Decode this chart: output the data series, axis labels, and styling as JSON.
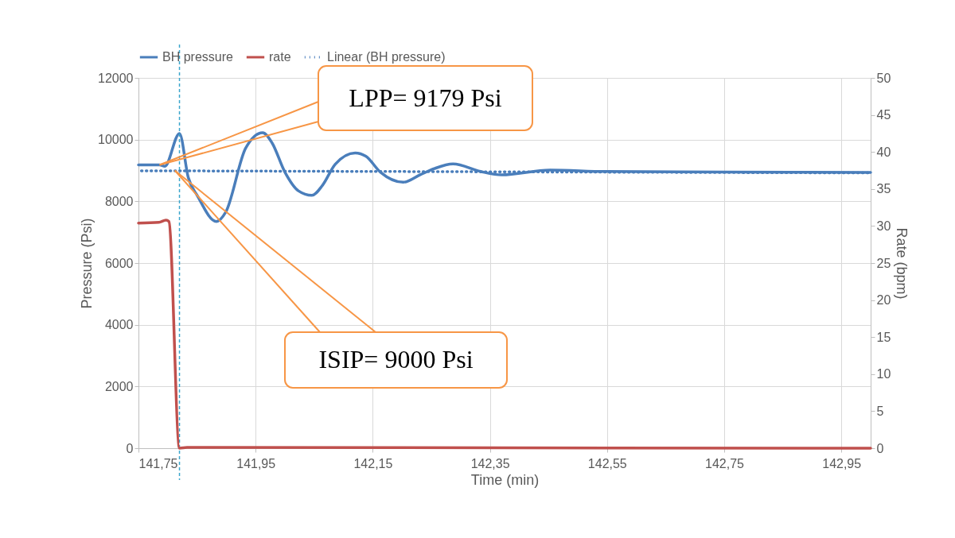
{
  "chart_data": {
    "type": "line",
    "xlabel": "Time (min)",
    "ylabel": "Pressure (Psi)",
    "y2label": "Rate (bpm)",
    "xlim": [
      141.75,
      143.0
    ],
    "xticks": [
      {
        "value": 141.75,
        "label": "141,75"
      },
      {
        "value": 141.95,
        "label": "141,95"
      },
      {
        "value": 142.15,
        "label": "142,15"
      },
      {
        "value": 142.35,
        "label": "142,35"
      },
      {
        "value": 142.55,
        "label": "142,55"
      },
      {
        "value": 142.75,
        "label": "142,75"
      },
      {
        "value": 142.95,
        "label": "142,95"
      }
    ],
    "ylim": [
      0,
      12000
    ],
    "yticks": [
      0,
      2000,
      4000,
      6000,
      8000,
      10000,
      12000
    ],
    "y2lim": [
      0,
      50
    ],
    "y2ticks": [
      0,
      5,
      10,
      15,
      20,
      25,
      30,
      35,
      40,
      45,
      50
    ],
    "grid": true,
    "legend": "top",
    "marker": "none",
    "series": [
      {
        "name": "BH pressure",
        "color": "#4a7ebb",
        "line_style": "solid",
        "x": [
          141.75,
          141.786,
          141.795,
          141.82,
          141.835,
          141.851,
          141.883,
          141.899,
          141.933,
          141.962,
          141.978,
          142.0,
          142.023,
          142.046,
          142.064,
          142.086,
          142.12,
          142.138,
          142.163,
          142.202,
          142.231,
          142.255,
          142.287,
          142.334,
          142.37,
          142.453,
          142.547,
          142.75,
          143.0
        ],
        "values": [
          9179,
          9179,
          9136,
          10199,
          8773,
          8168,
          7347,
          7650,
          9724,
          10225,
          9896,
          8946,
          8341,
          8194,
          8514,
          9205,
          9568,
          9464,
          8946,
          8618,
          8860,
          9060,
          9212,
          8966,
          8857,
          9015,
          8966,
          8950,
          8936
        ]
      },
      {
        "name": "rate",
        "color": "#c0504d",
        "line_style": "solid",
        "axis": "y2",
        "x": [
          141.75,
          141.785,
          141.797,
          141.802,
          141.82,
          141.833,
          143.0
        ],
        "values": [
          30.4,
          30.5,
          30.8,
          30.6,
          0,
          0.1,
          0
        ]
      },
      {
        "name": "Linear (BH pressure)",
        "color": "#4a7ebb",
        "line_style": "dotted",
        "x": [
          141.755,
          143.0
        ],
        "values": [
          8990,
          8920
        ]
      }
    ],
    "ref_lines": [
      {
        "axis": "x",
        "value": 141.82,
        "color": "#3ba6cc",
        "line_style": "dashed"
      }
    ],
    "annotations": [
      {
        "text": "LPP= 9179 Psi",
        "x": 141.786,
        "y": 9179
      },
      {
        "text": "ISIP= 9000 Psi",
        "x": 141.812,
        "y": 9000
      }
    ]
  }
}
